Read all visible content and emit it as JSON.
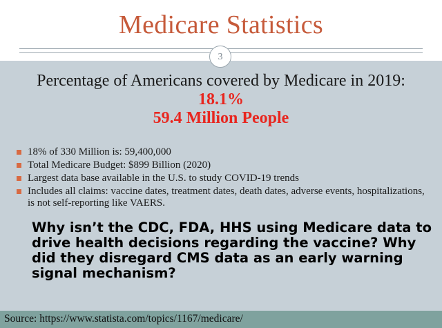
{
  "slide": {
    "title": "Medicare Statistics",
    "page_number": "3",
    "headline": "Percentage of Americans covered by Medicare in 2019:",
    "stat_percent": "18.1%",
    "stat_people": "59.4 Million People",
    "bullets": [
      "18% of 330 Million is: 59,400,000",
      "Total Medicare Budget:  $899 Billion (2020)",
      "Largest data base available in the U.S. to study COVID-19 trends",
      "Includes all claims: vaccine dates, treatment dates, death dates, adverse events, hospitalizations, is not self-reporting like VAERS."
    ],
    "question": "Why isn’t the CDC, FDA, HHS using Medicare data to drive health decisions regarding the vaccine? Why did they disregard CMS data as an early warning signal mechanism?",
    "source": "Source: https://www.statista.com/topics/1167/medicare/"
  },
  "colors": {
    "title": "#c65a3a",
    "stat": "#e8261f",
    "content_bg": "#c6d0d7",
    "footer_bg": "#7fa29e",
    "bullet": "#d86a43"
  }
}
